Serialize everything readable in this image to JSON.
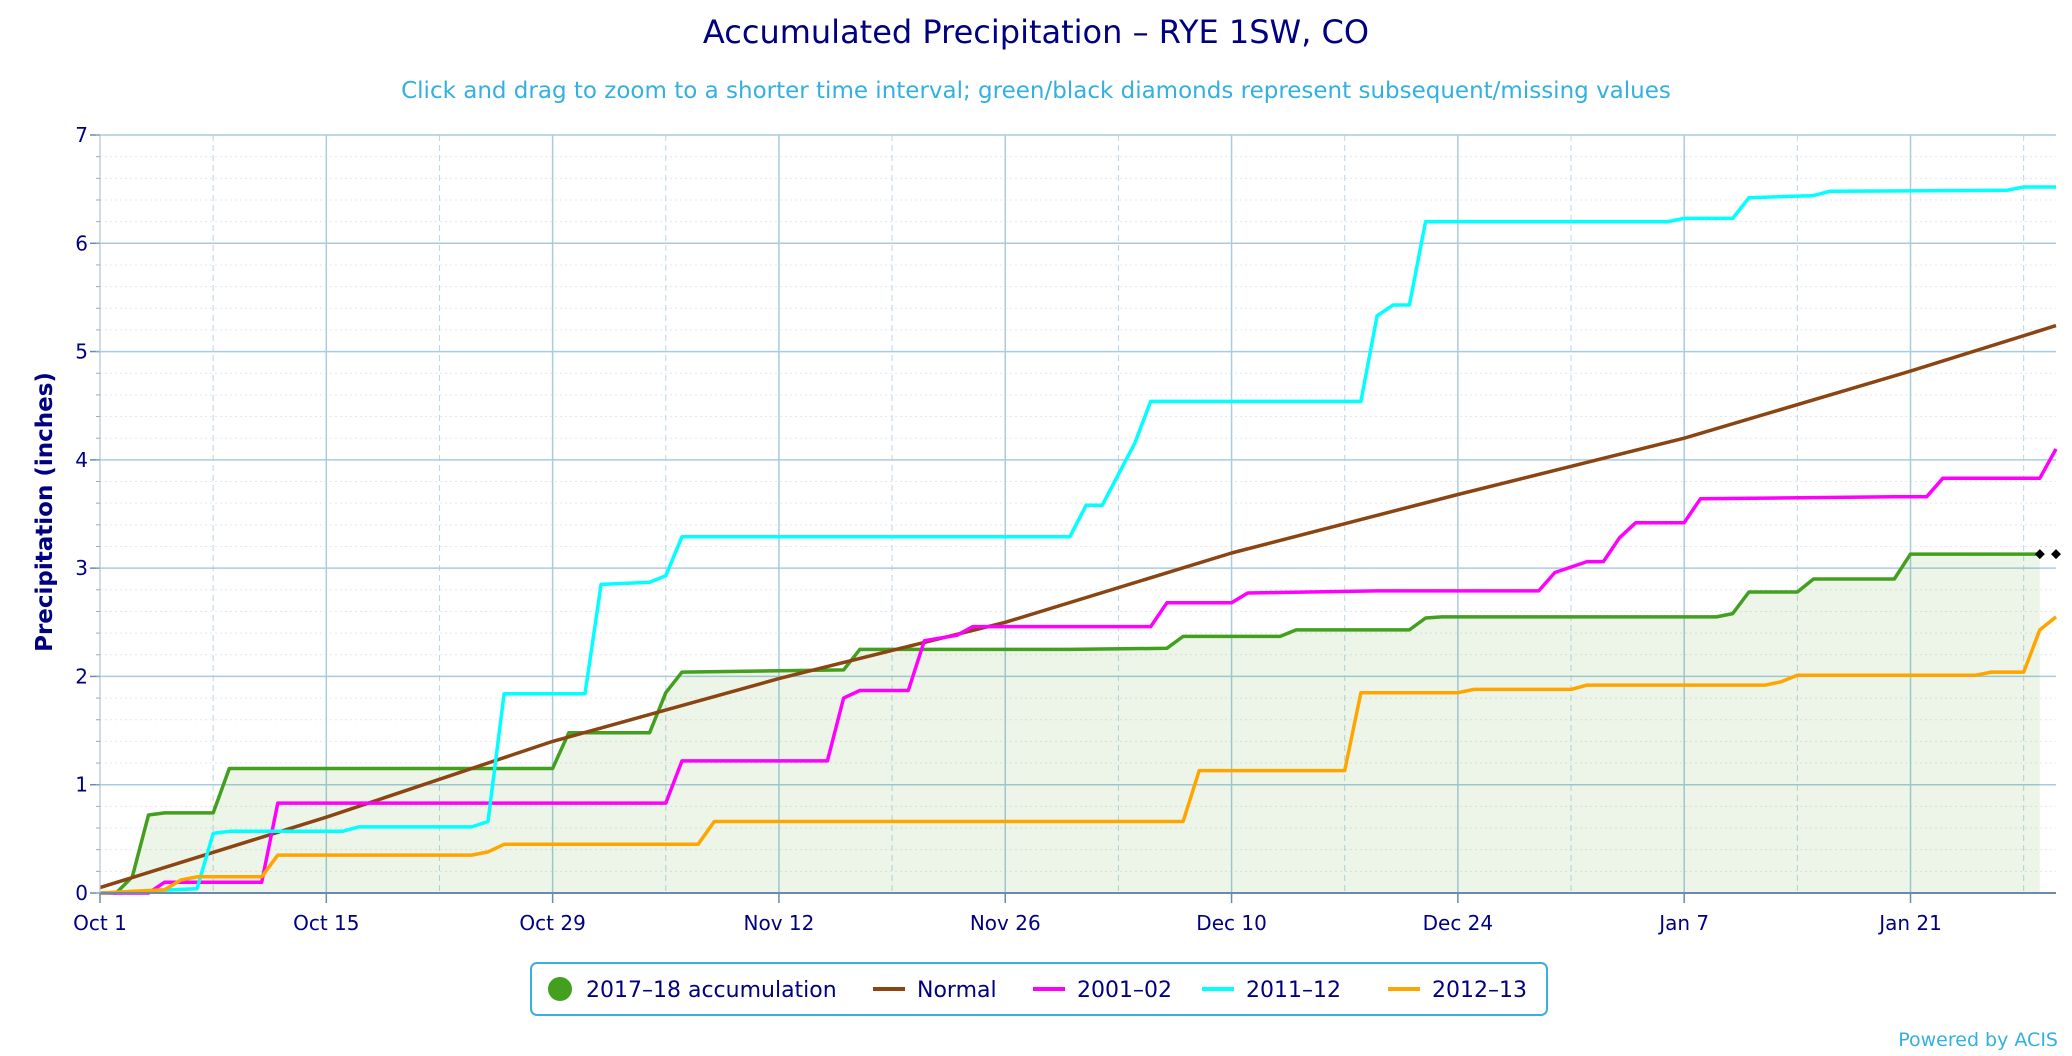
{
  "chart_data": {
    "type": "line",
    "title": "Accumulated Precipitation – RYE 1SW, CO",
    "subtitle": "Click and drag to zoom to a shorter time interval; green/black diamonds represent subsequent/missing values",
    "ylabel": "Precipitation (inches)",
    "xlabel": "",
    "ylim": [
      0,
      7
    ],
    "y_ticks": [
      "0",
      "1",
      "2",
      "3",
      "4",
      "5",
      "6",
      "7"
    ],
    "x_domain_dates": [
      "2017-10-01",
      "2018-01-30"
    ],
    "x_ticks": [
      {
        "date": "2017-10-01",
        "label": "Oct 1"
      },
      {
        "date": "2017-10-15",
        "label": "Oct 15"
      },
      {
        "date": "2017-10-29",
        "label": "Oct 29"
      },
      {
        "date": "2017-11-12",
        "label": "Nov 12"
      },
      {
        "date": "2017-11-26",
        "label": "Nov 26"
      },
      {
        "date": "2017-12-10",
        "label": "Dec 10"
      },
      {
        "date": "2017-12-24",
        "label": "Dec 24"
      },
      {
        "date": "2018-01-07",
        "label": "Jan 7"
      },
      {
        "date": "2018-01-21",
        "label": "Jan 21"
      }
    ],
    "grid": true,
    "legend_position": "bottom-center",
    "credit": "Powered by ACIS",
    "series": [
      {
        "name": "2017–18 accumulation",
        "color": "#43a01e",
        "fill": "area",
        "points": [
          [
            "2017-10-01",
            0
          ],
          [
            "2017-10-02",
            0
          ],
          [
            "2017-10-03",
            0.15
          ],
          [
            "2017-10-04",
            0.72
          ],
          [
            "2017-10-05",
            0.74
          ],
          [
            "2017-10-07",
            0.74
          ],
          [
            "2017-10-08",
            0.74
          ],
          [
            "2017-10-09",
            1.15
          ],
          [
            "2017-10-20",
            1.15
          ],
          [
            "2017-10-28",
            1.15
          ],
          [
            "2017-10-29",
            1.15
          ],
          [
            "2017-10-30",
            1.48
          ],
          [
            "2017-11-04",
            1.48
          ],
          [
            "2017-11-05",
            1.85
          ],
          [
            "2017-11-06",
            2.04
          ],
          [
            "2017-11-16",
            2.06
          ],
          [
            "2017-11-17",
            2.25
          ],
          [
            "2017-11-30",
            2.25
          ],
          [
            "2017-12-06",
            2.26
          ],
          [
            "2017-12-07",
            2.37
          ],
          [
            "2017-12-13",
            2.37
          ],
          [
            "2017-12-14",
            2.43
          ],
          [
            "2017-12-21",
            2.43
          ],
          [
            "2017-12-22",
            2.54
          ],
          [
            "2017-12-23",
            2.55
          ],
          [
            "2018-01-09",
            2.55
          ],
          [
            "2018-01-10",
            2.58
          ],
          [
            "2018-01-11",
            2.78
          ],
          [
            "2018-01-14",
            2.78
          ],
          [
            "2018-01-15",
            2.9
          ],
          [
            "2018-01-20",
            2.9
          ],
          [
            "2018-01-21",
            3.13
          ],
          [
            "2018-01-28",
            3.13
          ],
          [
            "2018-01-29",
            3.13
          ]
        ],
        "markers": [
          {
            "date": "2018-01-29",
            "value": 3.13,
            "label": "subsequent/missing",
            "color": "#000000"
          },
          {
            "date": "2018-01-30",
            "value": 3.13,
            "label": "subsequent/missing",
            "color": "#000000"
          }
        ]
      },
      {
        "name": "Normal",
        "color": "#8b4513",
        "points": [
          [
            "2017-10-01",
            0.05
          ],
          [
            "2017-10-15",
            0.7
          ],
          [
            "2017-10-29",
            1.4
          ],
          [
            "2017-11-12",
            1.98
          ],
          [
            "2017-11-26",
            2.5
          ],
          [
            "2017-12-10",
            3.14
          ],
          [
            "2017-12-24",
            3.68
          ],
          [
            "2018-01-07",
            4.2
          ],
          [
            "2018-01-21",
            4.82
          ],
          [
            "2018-01-30",
            5.24
          ]
        ]
      },
      {
        "name": "2001–02",
        "color": "#ff00ff",
        "points": [
          [
            "2017-10-01",
            0
          ],
          [
            "2017-10-04",
            0
          ],
          [
            "2017-10-05",
            0.1
          ],
          [
            "2017-10-11",
            0.1
          ],
          [
            "2017-10-12",
            0.83
          ],
          [
            "2017-11-05",
            0.83
          ],
          [
            "2017-11-06",
            1.22
          ],
          [
            "2017-11-15",
            1.22
          ],
          [
            "2017-11-16",
            1.8
          ],
          [
            "2017-11-17",
            1.87
          ],
          [
            "2017-11-20",
            1.87
          ],
          [
            "2017-11-21",
            2.33
          ],
          [
            "2017-11-23",
            2.38
          ],
          [
            "2017-11-24",
            2.46
          ],
          [
            "2017-12-05",
            2.46
          ],
          [
            "2017-12-06",
            2.68
          ],
          [
            "2017-12-10",
            2.68
          ],
          [
            "2017-12-11",
            2.77
          ],
          [
            "2017-12-19",
            2.79
          ],
          [
            "2017-12-29",
            2.79
          ],
          [
            "2017-12-30",
            2.96
          ],
          [
            "2018-01-01",
            3.06
          ],
          [
            "2018-01-02",
            3.06
          ],
          [
            "2018-01-03",
            3.28
          ],
          [
            "2018-01-04",
            3.42
          ],
          [
            "2018-01-07",
            3.42
          ],
          [
            "2018-01-08",
            3.64
          ],
          [
            "2018-01-20",
            3.66
          ],
          [
            "2018-01-22",
            3.66
          ],
          [
            "2018-01-23",
            3.83
          ],
          [
            "2018-01-29",
            3.83
          ],
          [
            "2018-01-30",
            4.1
          ]
        ]
      },
      {
        "name": "2011–12",
        "color": "#00ffff",
        "points": [
          [
            "2017-10-01",
            0
          ],
          [
            "2017-10-07",
            0.04
          ],
          [
            "2017-10-08",
            0.55
          ],
          [
            "2017-10-09",
            0.57
          ],
          [
            "2017-10-16",
            0.57
          ],
          [
            "2017-10-17",
            0.61
          ],
          [
            "2017-10-24",
            0.61
          ],
          [
            "2017-10-25",
            0.66
          ],
          [
            "2017-10-26",
            1.84
          ],
          [
            "2017-10-31",
            1.84
          ],
          [
            "2017-11-01",
            2.85
          ],
          [
            "2017-11-04",
            2.87
          ],
          [
            "2017-11-05",
            2.93
          ],
          [
            "2017-11-06",
            3.29
          ],
          [
            "2017-11-30",
            3.29
          ],
          [
            "2017-12-01",
            3.58
          ],
          [
            "2017-12-02",
            3.58
          ],
          [
            "2017-12-04",
            4.15
          ],
          [
            "2017-12-05",
            4.54
          ],
          [
            "2017-12-18",
            4.54
          ],
          [
            "2017-12-19",
            5.33
          ],
          [
            "2017-12-20",
            5.43
          ],
          [
            "2017-12-21",
            5.43
          ],
          [
            "2017-12-22",
            6.2
          ],
          [
            "2018-01-06",
            6.2
          ],
          [
            "2018-01-07",
            6.23
          ],
          [
            "2018-01-10",
            6.23
          ],
          [
            "2018-01-11",
            6.42
          ],
          [
            "2018-01-15",
            6.44
          ],
          [
            "2018-01-16",
            6.48
          ],
          [
            "2018-01-27",
            6.49
          ],
          [
            "2018-01-28",
            6.52
          ],
          [
            "2018-01-30",
            6.52
          ]
        ]
      },
      {
        "name": "2012–13",
        "color": "#ffa500",
        "points": [
          [
            "2017-10-01",
            0
          ],
          [
            "2017-10-05",
            0.03
          ],
          [
            "2017-10-06",
            0.12
          ],
          [
            "2017-10-07",
            0.15
          ],
          [
            "2017-10-11",
            0.15
          ],
          [
            "2017-10-12",
            0.35
          ],
          [
            "2017-10-24",
            0.35
          ],
          [
            "2017-10-25",
            0.38
          ],
          [
            "2017-10-26",
            0.45
          ],
          [
            "2017-11-07",
            0.45
          ],
          [
            "2017-11-08",
            0.66
          ],
          [
            "2017-12-07",
            0.66
          ],
          [
            "2017-12-08",
            1.13
          ],
          [
            "2017-12-17",
            1.13
          ],
          [
            "2017-12-18",
            1.85
          ],
          [
            "2017-12-24",
            1.85
          ],
          [
            "2017-12-25",
            1.88
          ],
          [
            "2017-12-31",
            1.88
          ],
          [
            "2018-01-01",
            1.92
          ],
          [
            "2018-01-12",
            1.92
          ],
          [
            "2018-01-13",
            1.95
          ],
          [
            "2018-01-14",
            2.01
          ],
          [
            "2018-01-25",
            2.01
          ],
          [
            "2018-01-26",
            2.04
          ],
          [
            "2018-01-28",
            2.04
          ],
          [
            "2018-01-29",
            2.43
          ],
          [
            "2018-01-30",
            2.55
          ]
        ]
      }
    ]
  }
}
